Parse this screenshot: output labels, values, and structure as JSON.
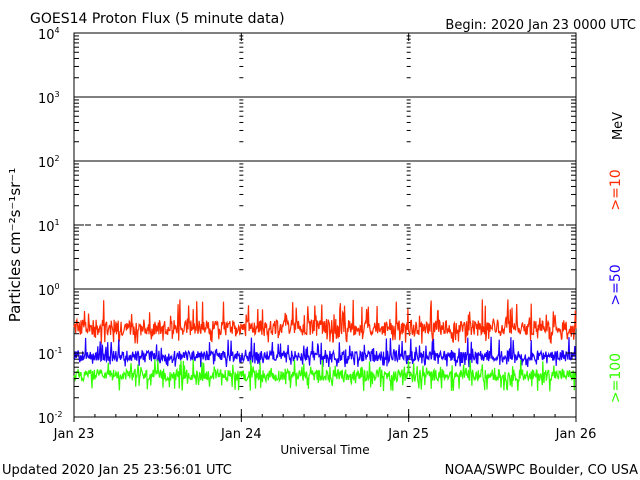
{
  "chart_data": {
    "type": "line",
    "title": "GOES14 Proton Flux (5 minute data)",
    "begin_label": "Begin: 2020 Jan 23 0000 UTC",
    "ylabel": "Particles cm⁻²s⁻¹sr⁻¹",
    "xlabel": "Universal Time",
    "y_scale": "log",
    "ylim": [
      0.01,
      10000
    ],
    "y_ticks": [
      {
        "base": "10",
        "exp": "4"
      },
      {
        "base": "10",
        "exp": "3"
      },
      {
        "base": "10",
        "exp": "2"
      },
      {
        "base": "10",
        "exp": "1"
      },
      {
        "base": "10",
        "exp": "0"
      },
      {
        "base": "10",
        "exp": "-1"
      },
      {
        "base": "10",
        "exp": "-2"
      }
    ],
    "x_unit": "days",
    "xlim": [
      0,
      3
    ],
    "x_ticks": [
      "Jan 23",
      "Jan 24",
      "Jan 25",
      "Jan 26"
    ],
    "threshold_lines": [
      {
        "value": 1000,
        "style": "solid"
      },
      {
        "value": 100,
        "style": "solid"
      },
      {
        "value": 10,
        "style": "dashed"
      },
      {
        "value": 1,
        "style": "solid"
      }
    ],
    "series": [
      {
        "name": ">=10",
        "color": "#ff2a00",
        "typical": 0.25,
        "min": 0.14,
        "max": 0.7
      },
      {
        "name": ">=50",
        "color": "#1f00ff",
        "typical": 0.09,
        "min": 0.06,
        "max": 0.18
      },
      {
        "name": ">=100",
        "color": "#33ff00",
        "typical": 0.045,
        "min": 0.025,
        "max": 0.08
      }
    ],
    "legend_unit": "MeV",
    "legend_placement": "right"
  },
  "footer": {
    "updated": "Updated 2020 Jan 25 23:56:01 UTC",
    "source": "NOAA/SWPC Boulder, CO USA"
  }
}
